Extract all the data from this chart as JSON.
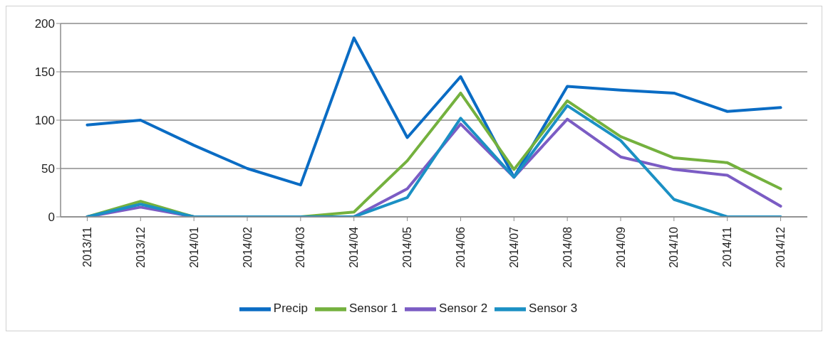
{
  "chart_data": {
    "type": "line",
    "categories": [
      "2013/11",
      "2013/12",
      "2014/01",
      "2014/02",
      "2014/03",
      "2014/04",
      "2014/05",
      "2014/06",
      "2014/07",
      "2014/08",
      "2014/09",
      "2014/10",
      "2014/11",
      "2014/12"
    ],
    "series": [
      {
        "name": "Precip",
        "color": "#0a6cc4",
        "values": [
          95,
          100,
          74,
          50,
          33,
          185,
          82,
          145,
          41,
          135,
          131,
          128,
          109,
          113
        ]
      },
      {
        "name": "Sensor 1",
        "color": "#74b13e",
        "values": [
          0,
          16,
          0,
          0,
          0,
          5,
          58,
          128,
          49,
          120,
          83,
          61,
          56,
          29
        ]
      },
      {
        "name": "Sensor 2",
        "color": "#7b5cc4",
        "values": [
          0,
          10,
          0,
          0,
          0,
          0,
          29,
          96,
          41,
          101,
          62,
          49,
          43,
          11
        ]
      },
      {
        "name": "Sensor 3",
        "color": "#1b90c4",
        "values": [
          0,
          13,
          0,
          0,
          0,
          0,
          20,
          102,
          41,
          115,
          79,
          18,
          0,
          0
        ]
      }
    ],
    "ylim": [
      0,
      200
    ],
    "yticks": [
      0,
      50,
      100,
      150,
      200
    ],
    "grid": "y",
    "legend": "bottom",
    "marker": "none"
  }
}
